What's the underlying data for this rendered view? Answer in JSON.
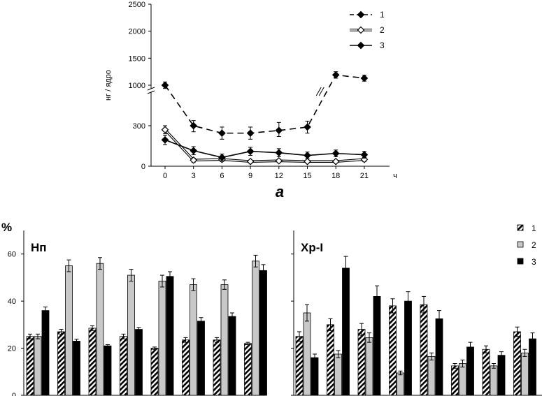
{
  "chart_data": [
    {
      "type": "line",
      "panel_label": "а",
      "ylabel": "нг / ядро",
      "xlabel_unit": "ч",
      "x": [
        0,
        3,
        6,
        9,
        12,
        15,
        18,
        21
      ],
      "x_tick_labels": [
        "0",
        "3",
        "6",
        "9",
        "12",
        "15",
        "18",
        "21"
      ],
      "y_tick_labels": [
        "0",
        "300",
        "1000",
        "1500",
        "2000",
        "2500"
      ],
      "y_axis_break": [
        300,
        1000
      ],
      "ylim": [
        0,
        2500
      ],
      "legend_position": "top-right",
      "series": [
        {
          "name": "1",
          "style": "dashed",
          "marker": "filled-diamond",
          "values": [
            1000,
            300,
            245,
            245,
            265,
            290,
            1190,
            1130
          ],
          "errors": [
            60,
            45,
            45,
            45,
            45,
            45,
            60,
            55
          ]
        },
        {
          "name": "2",
          "style": "double-line",
          "marker": "open-diamond",
          "values": [
            270,
            45,
            50,
            35,
            40,
            35,
            35,
            50
          ],
          "errors": [
            30,
            15,
            15,
            10,
            10,
            10,
            10,
            15
          ]
        },
        {
          "name": "3",
          "style": "solid",
          "marker": "filled-diamond",
          "values": [
            195,
            115,
            65,
            110,
            100,
            80,
            95,
            85
          ],
          "errors": [
            35,
            30,
            25,
            30,
            30,
            25,
            25,
            25
          ]
        }
      ]
    },
    {
      "type": "bar",
      "panel_title": "Нп",
      "ylabel": "%",
      "y_tick_labels": [
        "0",
        "20",
        "40",
        "60"
      ],
      "ylim": [
        0,
        70
      ],
      "groups": 8,
      "series": [
        {
          "name": "1",
          "pattern": "hatched",
          "values": [
            25,
            27,
            28.5,
            25,
            20,
            23.5,
            23.5,
            22
          ],
          "errors": [
            1,
            1,
            1,
            1,
            0.5,
            1,
            1,
            0.5
          ]
        },
        {
          "name": "2",
          "pattern": "gray",
          "values": [
            25,
            55,
            56,
            51,
            48.5,
            47,
            47,
            57
          ],
          "errors": [
            1,
            2.5,
            2.5,
            2.5,
            2.5,
            2.5,
            2,
            2.5
          ]
        },
        {
          "name": "3",
          "pattern": "black",
          "values": [
            36,
            23,
            21,
            28,
            50.5,
            31.5,
            33.5,
            53
          ],
          "errors": [
            1.5,
            0.8,
            0.5,
            0.8,
            2,
            1.5,
            1.5,
            2.5
          ]
        }
      ]
    },
    {
      "type": "bar",
      "panel_title": "Хр-I",
      "ylim": [
        0,
        70
      ],
      "legend_position": "top-right",
      "legend": [
        "1",
        "2",
        "3"
      ],
      "groups": 8,
      "series": [
        {
          "name": "1",
          "pattern": "hatched",
          "values": [
            25,
            30,
            28,
            38,
            38.5,
            12.5,
            19.5,
            27
          ],
          "errors": [
            2,
            2.5,
            2.5,
            3,
            3.5,
            1,
            1.5,
            2
          ]
        },
        {
          "name": "2",
          "pattern": "gray",
          "values": [
            35,
            17.5,
            24.5,
            9.5,
            16.5,
            13.5,
            12.5,
            18
          ],
          "errors": [
            3.5,
            1.5,
            2,
            0.8,
            1.5,
            1.5,
            1,
            1.5
          ]
        },
        {
          "name": "3",
          "pattern": "black",
          "values": [
            16,
            54,
            42,
            40,
            32.5,
            20.5,
            17,
            24
          ],
          "errors": [
            1.5,
            5,
            4.5,
            4,
            3.5,
            2,
            1.5,
            2.5
          ]
        }
      ]
    }
  ],
  "colors": {
    "axis": "#000000",
    "gray_bar": "#c8c8c8",
    "black_bar": "#000000"
  }
}
